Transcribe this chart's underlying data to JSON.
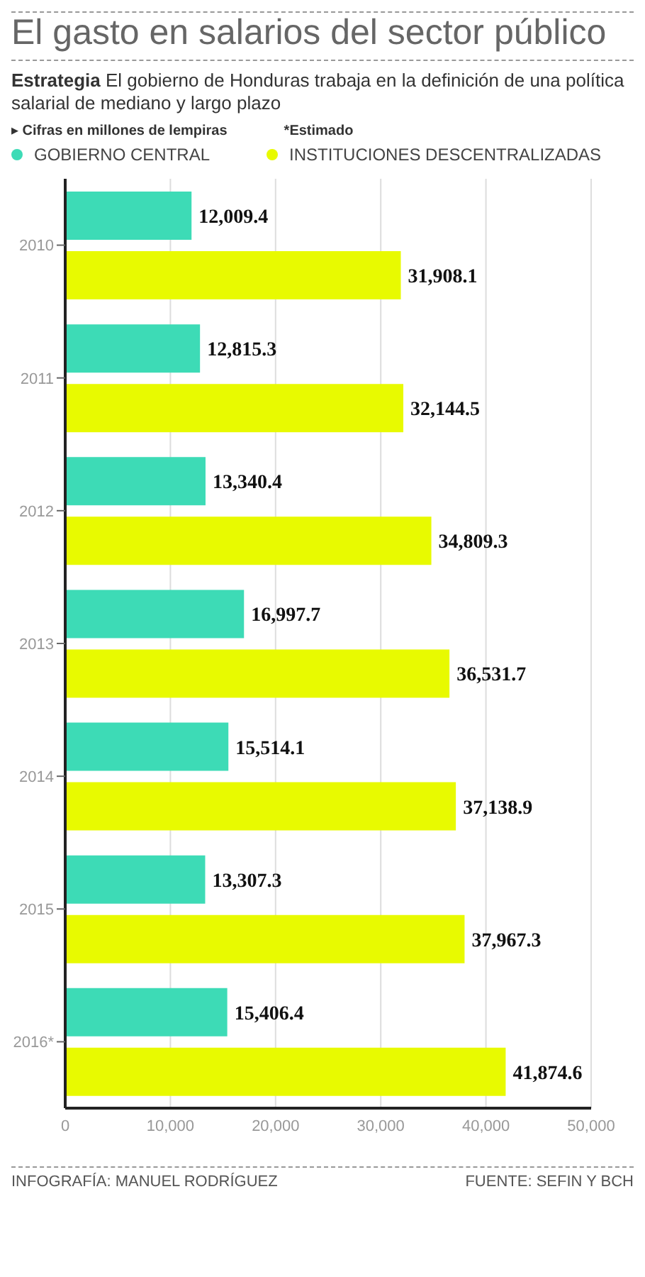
{
  "chart_data": {
    "type": "bar",
    "orientation": "horizontal",
    "title": "El gasto en salarios del sector público",
    "subtitle": "Estrategia El gobierno de Honduras trabaja en la definición de una política salarial de mediano y largo plazo",
    "annotations": [
      "▸ Cifras en millones de lempiras",
      "*Estimado",
      "INFOGRAFÍA: MANUEL RODRÍGUEZ",
      "FUENTE: SEFIN Y BCH"
    ],
    "categories": [
      "2010",
      "2011",
      "2012",
      "2013",
      "2014",
      "2015",
      "2016*"
    ],
    "series": [
      {
        "name": "GOBIERNO CENTRAL",
        "color": "#3ddbb6",
        "values": [
          12009.4,
          12815.3,
          13340.4,
          16997.7,
          15514.1,
          13307.3,
          15406.4
        ],
        "value_labels": [
          "12,009.4",
          "12,815.3",
          "13,340.4",
          "16,997.7",
          "15,514.1",
          "13,307.3",
          "15,406.4"
        ]
      },
      {
        "name": "INSTITUCIONES DESCENTRALIZADAS",
        "color": "#e8fa00",
        "values": [
          31908.1,
          32144.5,
          34809.3,
          36531.7,
          37138.9,
          37967.3,
          41874.6
        ],
        "value_labels": [
          "31,908.1",
          "32,144.5",
          "34,809.3",
          "36,531.7",
          "37,138.9",
          "37,967.3",
          "41,874.6"
        ]
      }
    ],
    "xlim": [
      0,
      50000
    ],
    "xticks": [
      {
        "value": 0,
        "label": "0"
      },
      {
        "value": 10000,
        "label": "10,000"
      },
      {
        "value": 20000,
        "label": "20,000"
      },
      {
        "value": 30000,
        "label": "30,000"
      },
      {
        "value": 40000,
        "label": "40,000"
      },
      {
        "value": 50000,
        "label": "50,000"
      }
    ],
    "grid": "x",
    "legend": "top left"
  }
}
